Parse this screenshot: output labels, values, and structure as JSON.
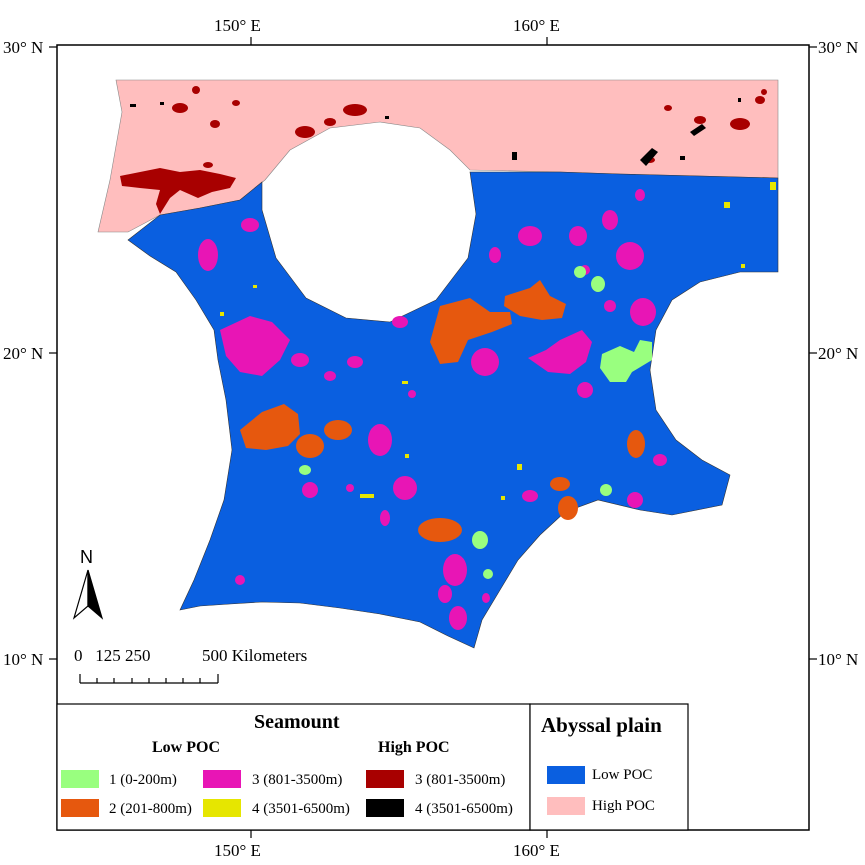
{
  "map": {
    "lon_labels": [
      "150° E",
      "160° E"
    ],
    "lat_labels": [
      "30° N",
      "20° N",
      "10° N"
    ]
  },
  "scale_bar": {
    "ticks_label": "0   125 250",
    "end_label": "500 Kilometers"
  },
  "north_arrow": {
    "label": "N",
    "icon": "north-arrow-icon"
  },
  "legend": {
    "seamount": {
      "title": "Seamount",
      "low_poc_title": "Low POC",
      "high_poc_title": "High POC",
      "low_poc_items": [
        {
          "label": "1 (0-200m)",
          "color": "#99FF7F"
        },
        {
          "label": "2 (201-800m)",
          "color": "#E6580E"
        },
        {
          "label": "3 (801-3500m)",
          "color": "#E815B5"
        },
        {
          "label": "4 (3501-6500m)",
          "color": "#E6E600"
        }
      ],
      "high_poc_items": [
        {
          "label": "3 (801-3500m)",
          "color": "#A80000"
        },
        {
          "label": "4 (3501-6500m)",
          "color": "#000000"
        }
      ]
    },
    "abyssal_plain": {
      "title": "Abyssal plain",
      "items": [
        {
          "label": "Low POC",
          "color": "#0A5FE0"
        },
        {
          "label": "High POC",
          "color": "#FFBEBE"
        }
      ]
    }
  }
}
